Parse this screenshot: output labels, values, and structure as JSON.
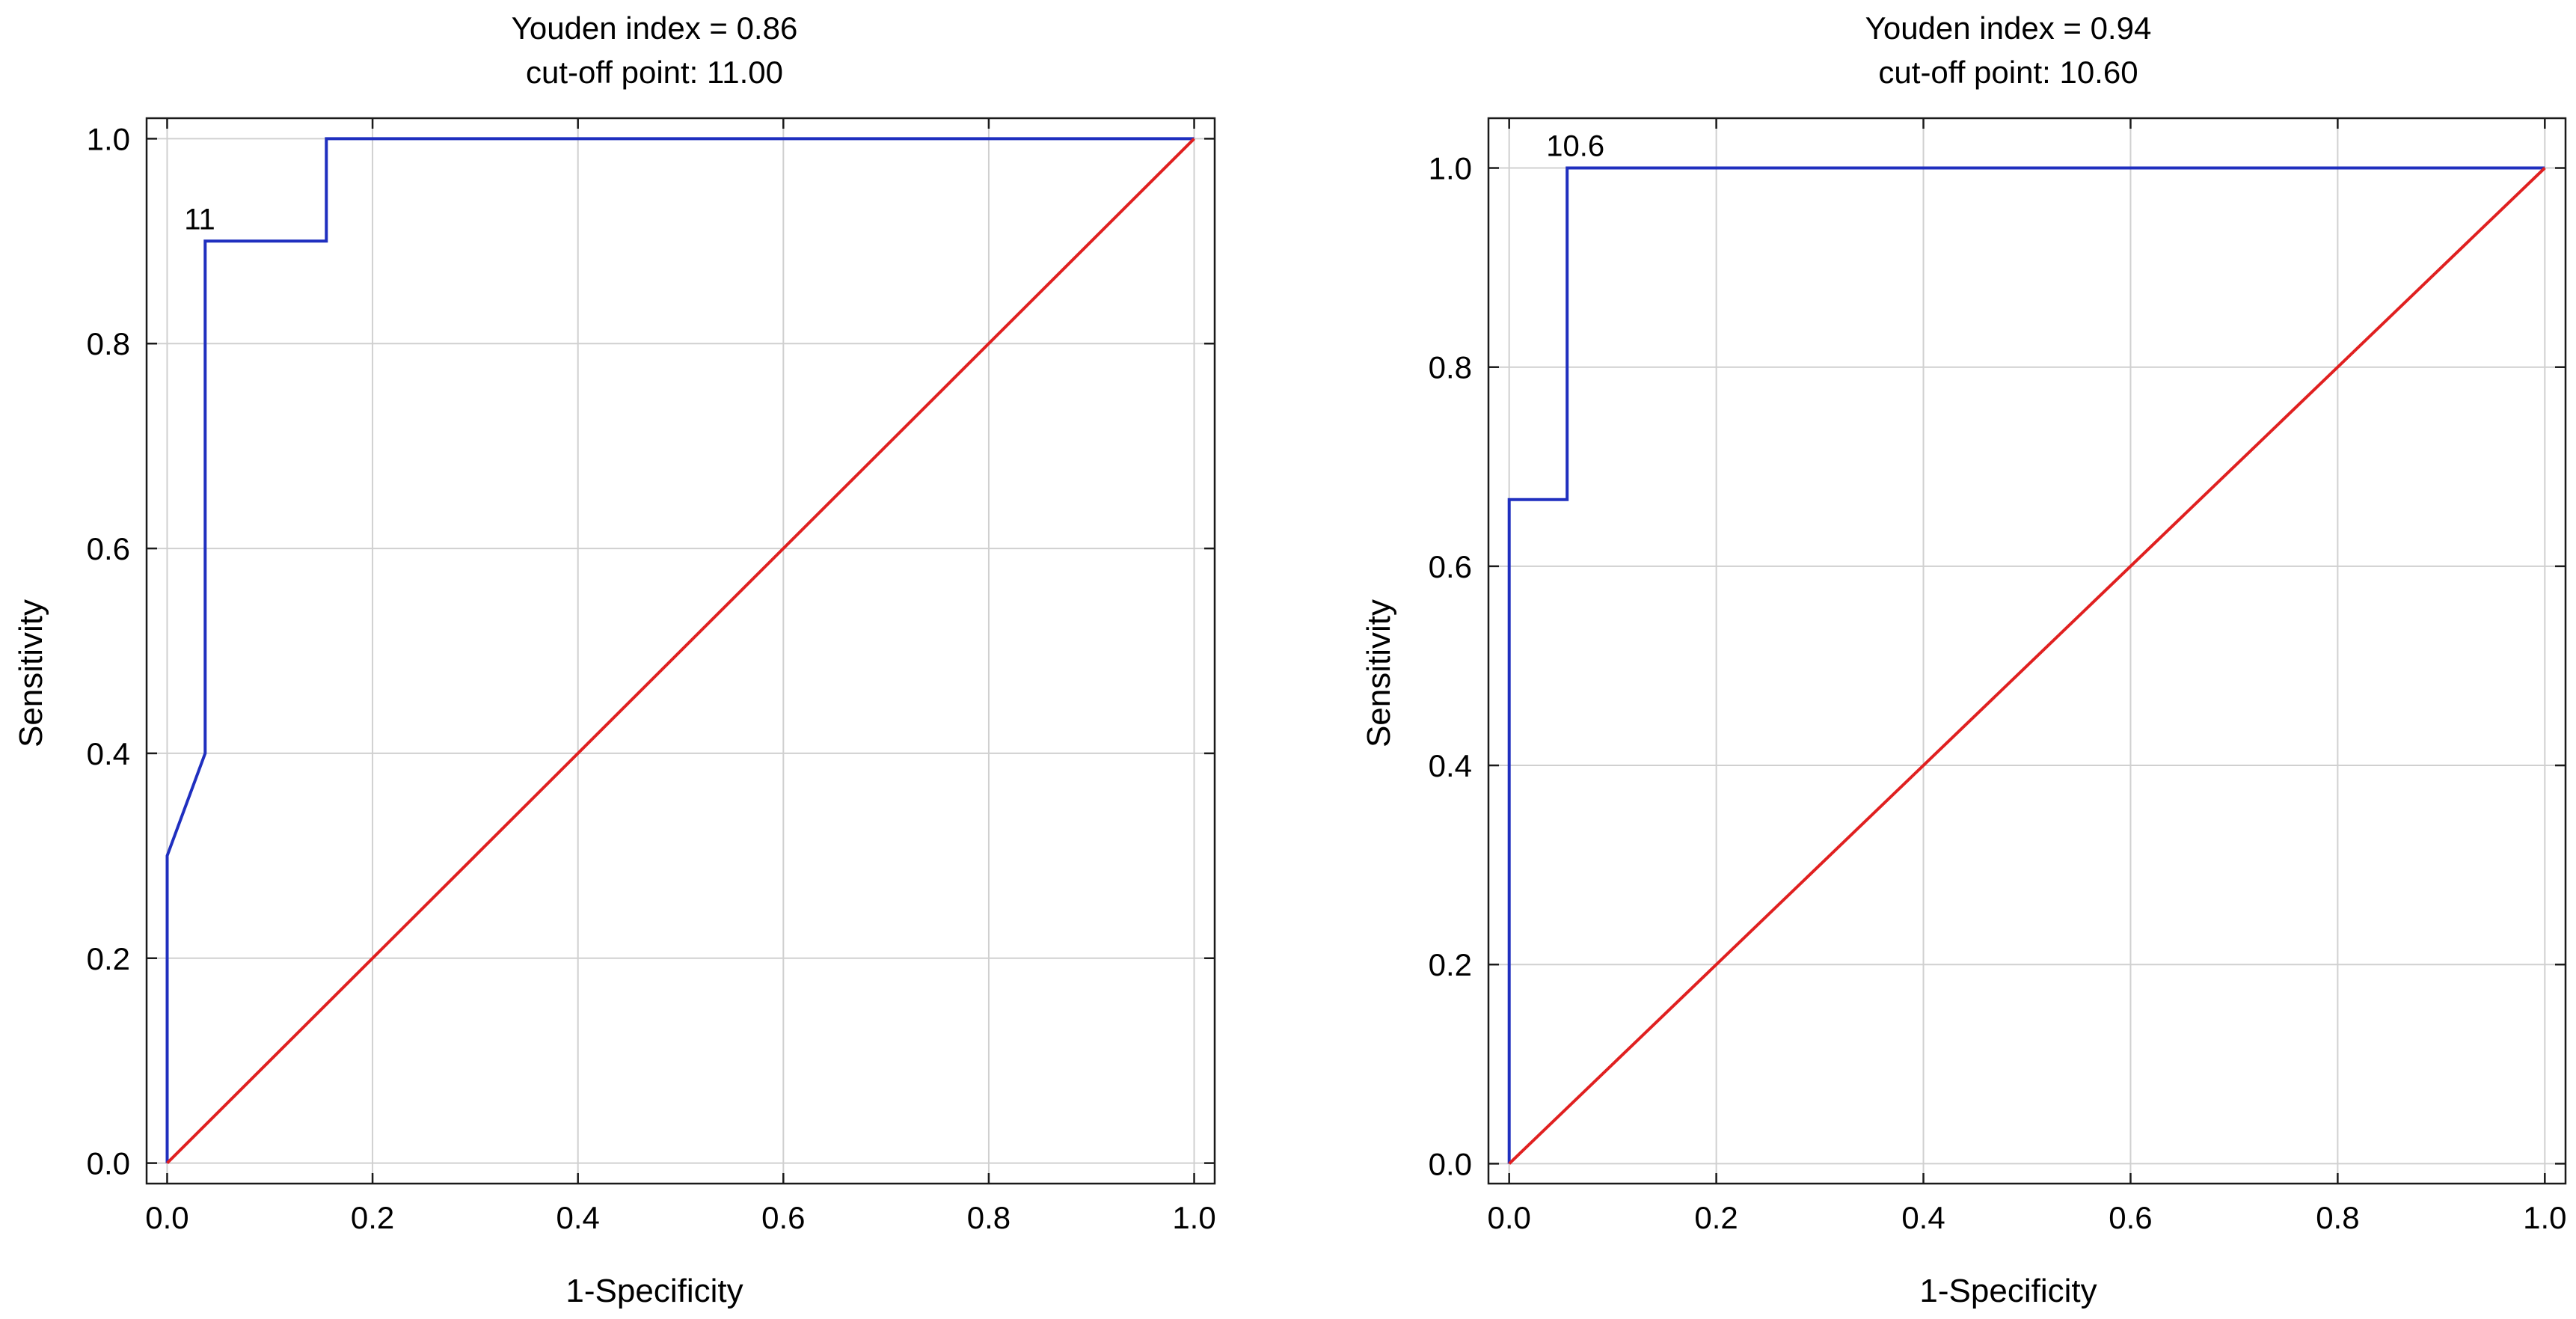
{
  "chart_data": [
    {
      "type": "line",
      "title_lines": [
        "Youden index  = 0.86",
        "cut-off point: 11.00"
      ],
      "xlabel": "1-Specificity",
      "ylabel": "Sensitivity",
      "xlim": [
        -0.02,
        1.02
      ],
      "ylim": [
        -0.02,
        1.02
      ],
      "xticks": [
        "0.0",
        "0.2",
        "0.4",
        "0.6",
        "0.8",
        "1.0"
      ],
      "yticks": [
        "0.0",
        "0.2",
        "0.4",
        "0.6",
        "0.8",
        "1.0"
      ],
      "grid": true,
      "series": [
        {
          "color": "#1f2fbf",
          "x": [
            0,
            0,
            0.037,
            0.037,
            0.155,
            0.155,
            1.0
          ],
          "y": [
            0,
            0.3,
            0.4,
            0.9,
            0.9,
            1.0,
            1.0
          ]
        },
        {
          "color": "#e02020",
          "x": [
            0,
            1
          ],
          "y": [
            0,
            1
          ]
        }
      ],
      "annotation": {
        "text": "11",
        "x": 0.037,
        "y": 0.9
      }
    },
    {
      "type": "line",
      "title_lines": [
        "Youden index  = 0.94",
        "cut-off point: 10.60"
      ],
      "xlabel": "1-Specificity",
      "ylabel": "Sensitivity",
      "xlim": [
        -0.02,
        1.02
      ],
      "ylim": [
        -0.02,
        1.05
      ],
      "xticks": [
        "0.0",
        "0.2",
        "0.4",
        "0.6",
        "0.8",
        "1.0"
      ],
      "yticks": [
        "0.0",
        "0.2",
        "0.4",
        "0.6",
        "0.8",
        "1.0"
      ],
      "grid": true,
      "series": [
        {
          "color": "#1f2fbf",
          "x": [
            0,
            0,
            0.056,
            0.056,
            1.0
          ],
          "y": [
            0,
            0.667,
            0.667,
            1.0,
            1.0
          ]
        },
        {
          "color": "#e02020",
          "x": [
            0,
            1
          ],
          "y": [
            0,
            1
          ]
        }
      ],
      "annotation": {
        "text": "10.6",
        "x": 0.056,
        "y": 1.0
      }
    }
  ]
}
